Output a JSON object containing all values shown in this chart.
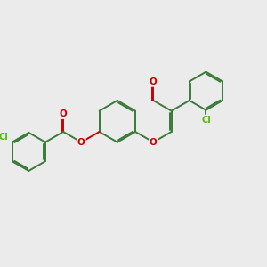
{
  "background_color": "#EBEBEB",
  "bond_color": "#3A7A3A",
  "oxygen_color": "#CC0000",
  "chlorine_color": "#55BB00",
  "line_width": 1.4,
  "dbo": 0.055,
  "figsize": [
    3.0,
    3.0
  ],
  "dpi": 100,
  "xlim": [
    0,
    10
  ],
  "ylim": [
    0,
    10
  ]
}
